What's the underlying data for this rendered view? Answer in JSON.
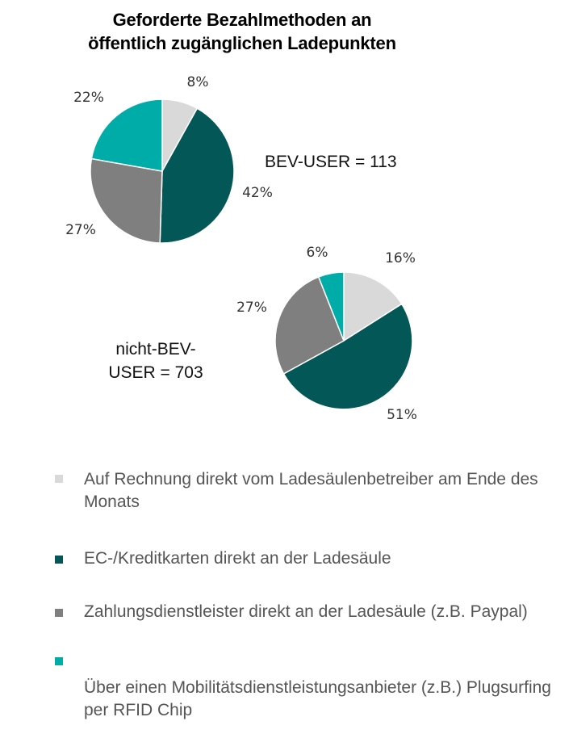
{
  "chart_data": {
    "type": "pie",
    "title": "Geforderte Bezahlmethoden an öffentlich zugänglichen Ladepunkten",
    "categories": [
      "Auf Rechnung direkt vom Ladesäulenbetreiber am Ende des Monats",
      "EC-/Kreditkarten direkt an der Ladesäule",
      "Zahlungsdienstleister direkt an der Ladesäule (z.B. Paypal)",
      "Über einen Mobilitätsdienstleistungsanbieter (z.B.) Plugsurfing per RFID Chip"
    ],
    "colors": [
      "#d9d9d9",
      "#035857",
      "#7f7f7f",
      "#00aca7"
    ],
    "series": [
      {
        "group_label": "BEV-USER = 113",
        "values": [
          8,
          42,
          27,
          22
        ],
        "labels": [
          "8%",
          "42%",
          "27%",
          "22%"
        ]
      },
      {
        "group_label": "nicht-BEV-USER = 703",
        "values": [
          16,
          51,
          27,
          6
        ],
        "labels": [
          "16%",
          "51%",
          "27%",
          "6%"
        ]
      }
    ],
    "legend_position": "bottom"
  }
}
